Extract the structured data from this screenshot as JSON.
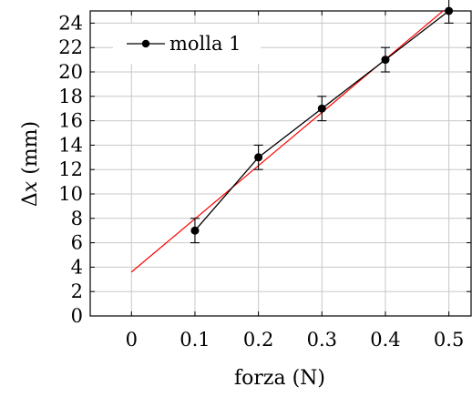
{
  "chart_data": {
    "type": "scatter",
    "xlabel": "forza (N)",
    "ylabel_prefix": "Δ",
    "ylabel_var": "x",
    "ylabel_unit": " (mm)",
    "xlim": [
      -0.065,
      0.535
    ],
    "ylim": [
      0,
      25
    ],
    "x_ticks": [
      0,
      0.1,
      0.2,
      0.3,
      0.4,
      0.5
    ],
    "x_tick_labels": [
      "0",
      "0.1",
      "0.2",
      "0.3",
      "0.4",
      "0.5"
    ],
    "y_ticks": [
      0,
      2,
      4,
      6,
      8,
      10,
      12,
      14,
      16,
      18,
      20,
      22,
      24
    ],
    "y_tick_labels": [
      "0",
      "2",
      "4",
      "6",
      "8",
      "10",
      "12",
      "14",
      "16",
      "18",
      "20",
      "22",
      "24"
    ],
    "grid": true,
    "legend_position": "top-left",
    "series": [
      {
        "name": "molla 1",
        "color": "#000000",
        "marker": "circle",
        "x": [
          0.1,
          0.2,
          0.3,
          0.4,
          0.5
        ],
        "y": [
          7,
          13,
          17,
          21,
          25
        ],
        "error": [
          1,
          1,
          1,
          1,
          1
        ]
      }
    ],
    "fit_line": {
      "color": "#ff0000",
      "x": [
        0,
        0.5
      ],
      "y": [
        3.6,
        25.4
      ]
    }
  }
}
